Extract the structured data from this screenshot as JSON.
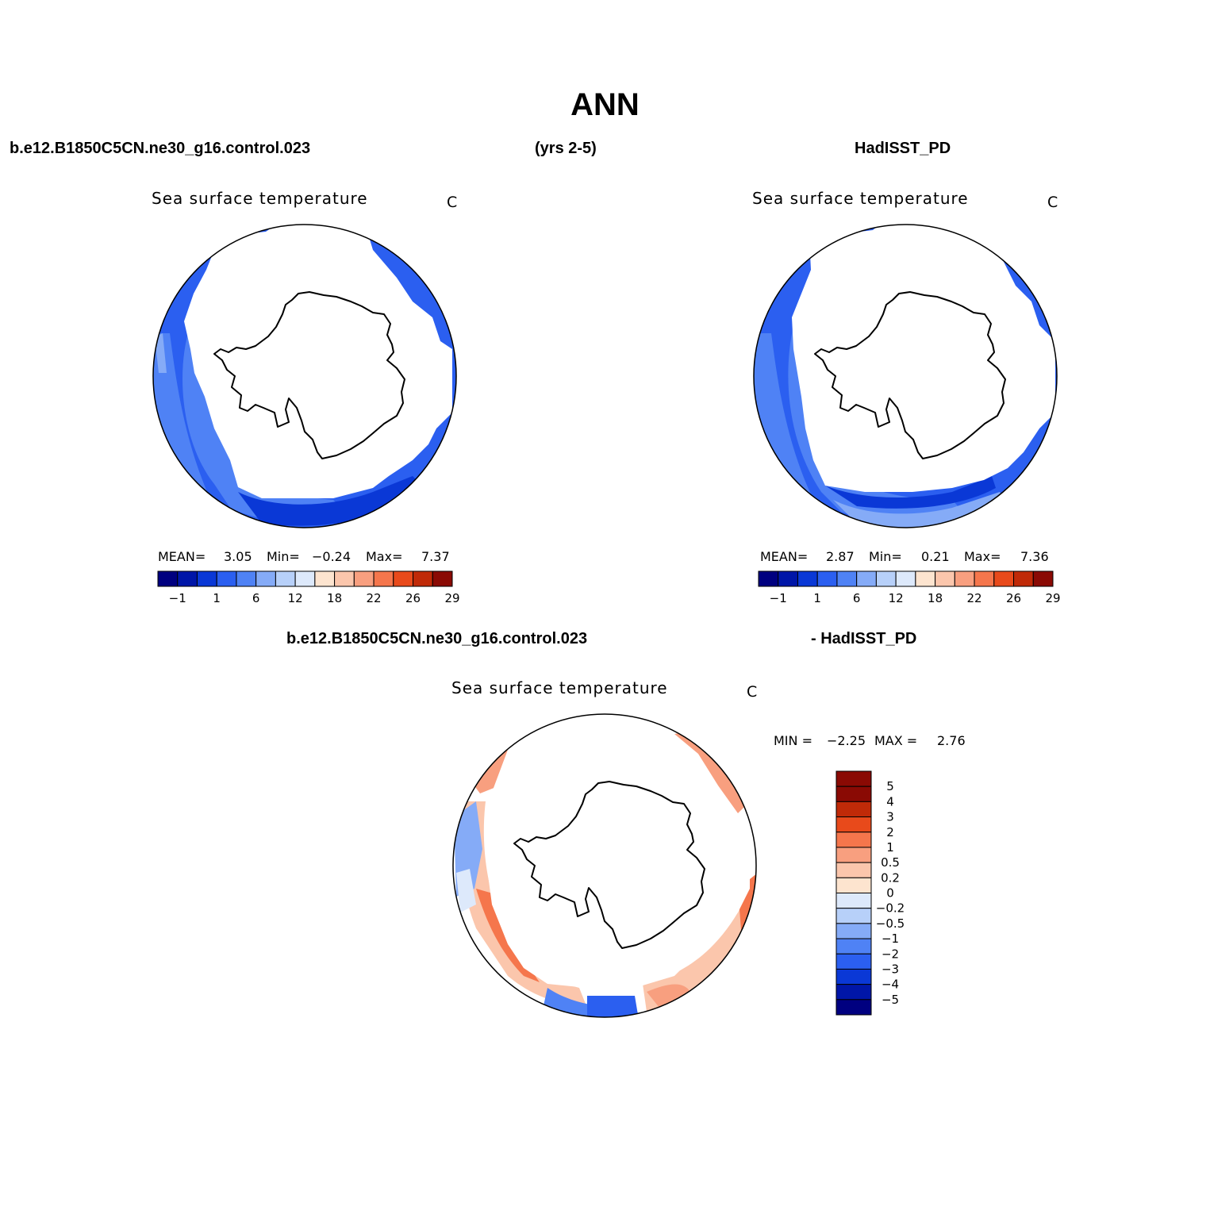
{
  "figure": {
    "title": "ANN",
    "left_header": "b.e12.B1850C5CN.ne30_g16.control.023",
    "center_header": "(yrs 2-5)",
    "right_header": "HadISST_PD",
    "diff_header_left": "b.e12.B1850C5CN.ne30_g16.control.023",
    "diff_header_right": "- HadISST_PD"
  },
  "panels": [
    {
      "id": "model",
      "title": "Sea surface temperature",
      "units": "C",
      "stats": {
        "mean_label": "MEAN=",
        "mean": "3.05",
        "min_label": "Min=",
        "min": "−0.24",
        "max_label": "Max=",
        "max": "7.37"
      }
    },
    {
      "id": "obs",
      "title": "Sea surface temperature",
      "units": "C",
      "stats": {
        "mean_label": "MEAN=",
        "mean": "2.87",
        "min_label": "Min=",
        "min": "0.21",
        "max_label": "Max=",
        "max": "7.36"
      }
    },
    {
      "id": "diff",
      "title": "Sea surface temperature",
      "units": "C",
      "stats": {
        "min_label": "MIN =",
        "min": "−2.25",
        "max_label": "MAX =",
        "max": "2.76"
      }
    }
  ],
  "colorbars": {
    "field": {
      "colors": [
        "#000080",
        "#0016a8",
        "#0a38d6",
        "#2b5ff0",
        "#4f82f5",
        "#85abf7",
        "#b7d0f9",
        "#dde9fb",
        "#fde4cf",
        "#fbc6ac",
        "#f89f7f",
        "#f5764c",
        "#e84a1b",
        "#c02a08",
        "#8a0a04"
      ],
      "labels": [
        "−1",
        "1",
        "6",
        "12",
        "18",
        "22",
        "26",
        "29"
      ]
    },
    "diff": {
      "colors": [
        "#000080",
        "#0016a8",
        "#0a38d6",
        "#2b5ff0",
        "#4f82f5",
        "#85abf7",
        "#b7d0f9",
        "#dde9fb",
        "#fde4cf",
        "#fbc6ac",
        "#f89f7f",
        "#f5764c",
        "#e84a1b",
        "#c02a08",
        "#8a0a04",
        "#8a0a04"
      ],
      "labels": [
        "5",
        "4",
        "3",
        "2",
        "1",
        "0.5",
        "0.2",
        "0",
        "−0.2",
        "−0.5",
        "−1",
        "−2",
        "−3",
        "−4",
        "−5"
      ]
    }
  }
}
